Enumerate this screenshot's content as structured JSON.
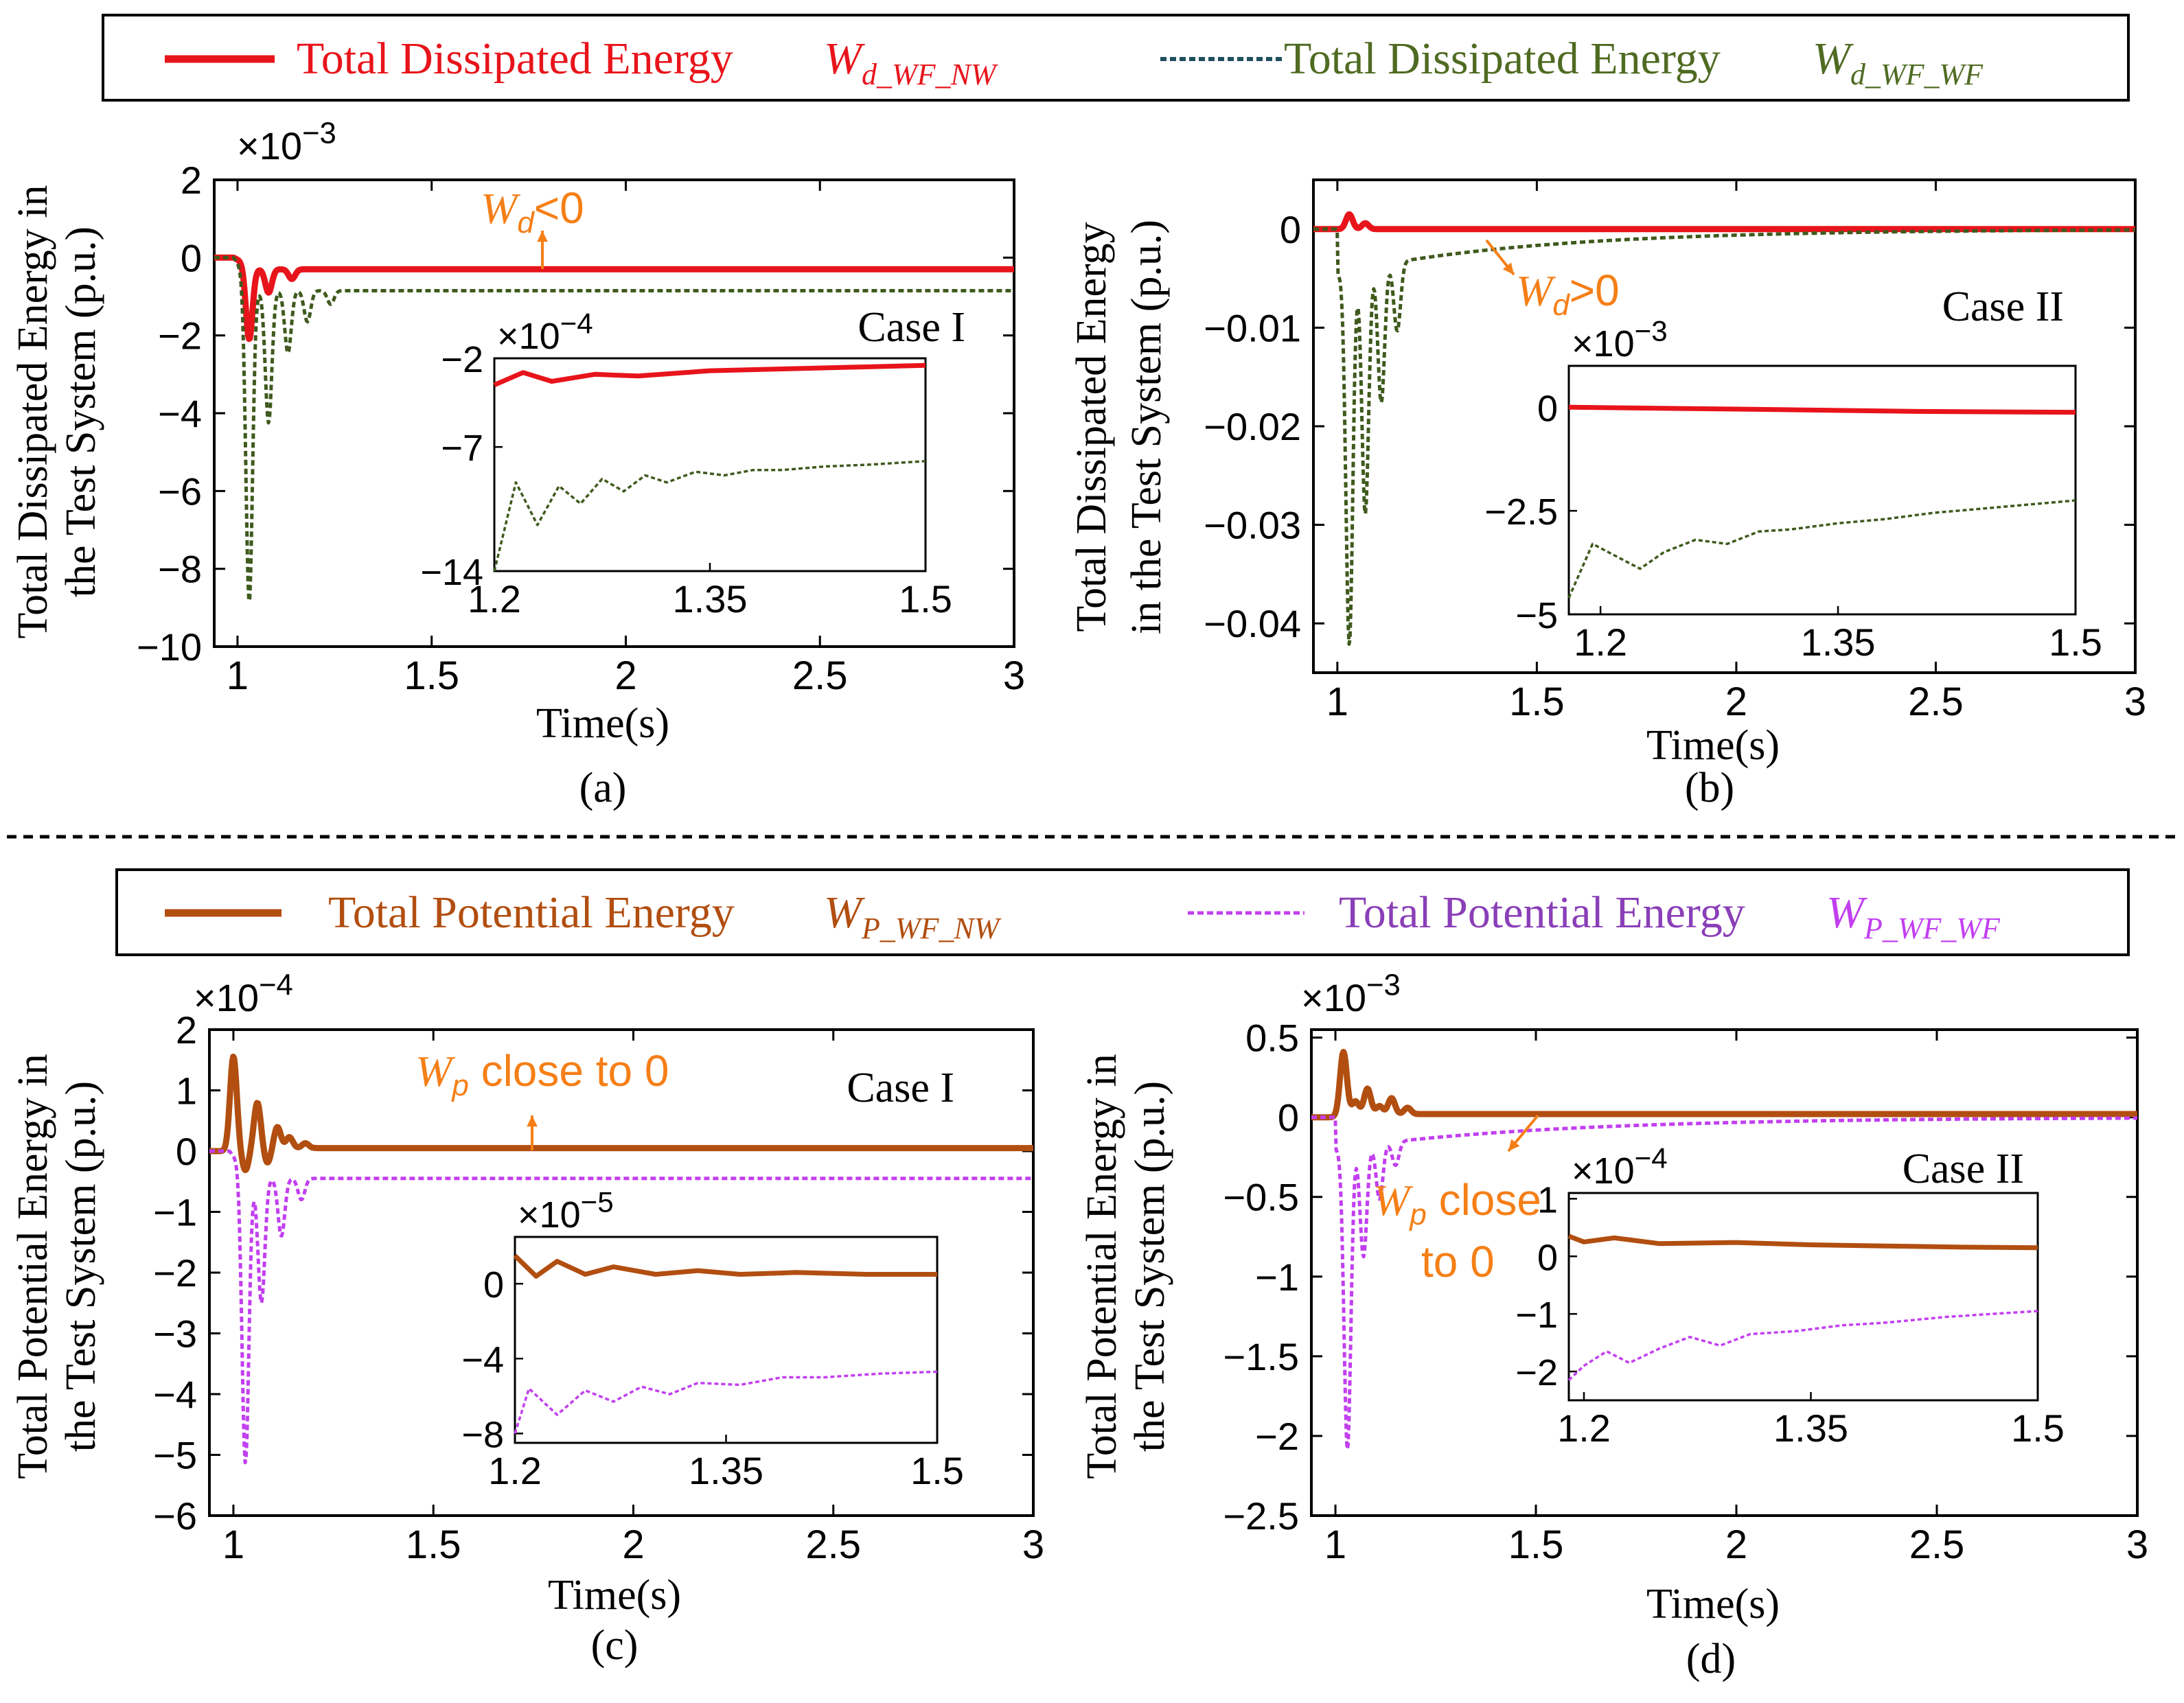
{
  "colors": {
    "wd_nw": "#e8141b",
    "wd_wf": "#3f5a1d",
    "wd_wf_label": "#4f6b22",
    "wd_wf_dash": "#1f4f5c",
    "wp_nw": "#b14e10",
    "wp_wf": "#c23ff0",
    "wp_wf_label": "#8a3fb8",
    "annot": "#f57f17",
    "axis": "#000000"
  },
  "legend_top": {
    "items": [
      {
        "label": "Total Dissipated Energy",
        "symbol_main": "W",
        "symbol_sub": "d_WF_NW",
        "line": "solid",
        "color_key": "wd_nw"
      },
      {
        "label": "Total Dissipated Energy",
        "symbol_main": "W",
        "symbol_sub": "d_WF_WF",
        "line": "dotted",
        "color_key": "wd_wf"
      }
    ]
  },
  "legend_bottom": {
    "items": [
      {
        "label": "Total Potential Energy",
        "symbol_main": "W",
        "symbol_sub": "P_WF_NW",
        "line": "solid",
        "color_key": "wp_nw"
      },
      {
        "label": "Total Potential Energy",
        "symbol_main": "W",
        "symbol_sub": "P_WF_WF",
        "line": "dotted",
        "color_key": "wp_wf"
      }
    ]
  },
  "chart_data": [
    {
      "id": "a",
      "type": "line",
      "caption": "(a)",
      "case_label": "Case I",
      "ylabel": [
        "Total Dissipated Energy in",
        "the Test System (p.u.)"
      ],
      "xlabel": "Time(s)",
      "xlim": [
        0.94,
        3
      ],
      "ylim": [
        -10,
        2
      ],
      "xticks": [
        1,
        1.5,
        2,
        2.5,
        3
      ],
      "xtick_labels": [
        "1",
        "1.5",
        "2",
        "2.5",
        "3"
      ],
      "yticks": [
        2,
        0,
        -2,
        -4,
        -6,
        -8,
        -10
      ],
      "ytick_labels": [
        "2",
        "0",
        "−2",
        "−4",
        "−6",
        "−8",
        "−10"
      ],
      "exponent": "×10−3",
      "annotation": {
        "main": "W",
        "sub": "d",
        "rest": "<0"
      },
      "series": [
        {
          "name": "W_d_WF_NW",
          "color_key": "wd_nw",
          "style": "solid",
          "base": -0.3,
          "dips": [
            [
              1.03,
              -1.9
            ],
            [
              1.08,
              -0.6
            ],
            [
              1.14,
              -0.25
            ]
          ]
        },
        {
          "name": "W_d_WF_WF",
          "color_key": "wd_wf",
          "style": "dotted",
          "base": -0.85,
          "dips": [
            [
              1.03,
              -8.3
            ],
            [
              1.08,
              -3.4
            ],
            [
              1.13,
              -1.6
            ],
            [
              1.18,
              -0.8
            ],
            [
              1.24,
              -0.35
            ]
          ]
        }
      ],
      "inset": {
        "exponent": "×10−4",
        "xlim": [
          1.2,
          1.5
        ],
        "ylim": [
          -14,
          -2
        ],
        "xticks": [
          1.2,
          1.35,
          1.5
        ],
        "xtick_labels": [
          "1.2",
          "1.35",
          "1.5"
        ],
        "yticks": [
          -2,
          -7,
          -14
        ],
        "ytick_labels": [
          "−2",
          "−7",
          "−14"
        ],
        "series": [
          {
            "color_key": "wd_nw",
            "style": "solid",
            "x": [
              1.2,
              1.22,
              1.24,
              1.27,
              1.3,
              1.35,
              1.4,
              1.45,
              1.5
            ],
            "y": [
              -3.5,
              -2.8,
              -3.3,
              -2.9,
              -3.0,
              -2.7,
              -2.6,
              -2.5,
              -2.4
            ]
          },
          {
            "color_key": "wd_wf",
            "style": "dotted",
            "x": [
              1.2,
              1.215,
              1.23,
              1.245,
              1.26,
              1.275,
              1.29,
              1.305,
              1.32,
              1.34,
              1.36,
              1.38,
              1.4,
              1.43,
              1.46,
              1.5
            ],
            "y": [
              -14,
              -9,
              -11.4,
              -9.2,
              -10.2,
              -8.8,
              -9.5,
              -8.6,
              -9.0,
              -8.4,
              -8.6,
              -8.3,
              -8.3,
              -8.1,
              -8.0,
              -7.8
            ]
          }
        ]
      }
    },
    {
      "id": "b",
      "type": "line",
      "caption": "(b)",
      "case_label": "Case II",
      "ylabel": [
        "Total Dissipated Energy",
        "in the Test System (p.u.)"
      ],
      "xlabel": "Time(s)",
      "xlim": [
        0.94,
        3
      ],
      "ylim": [
        -0.045,
        0.005
      ],
      "xticks": [
        1,
        1.5,
        2,
        2.5,
        3
      ],
      "xtick_labels": [
        "1",
        "1.5",
        "2",
        "2.5",
        "3"
      ],
      "yticks": [
        0,
        -0.01,
        -0.02,
        -0.03,
        -0.04
      ],
      "ytick_labels": [
        "0",
        "−0.01",
        "−0.02",
        "−0.03",
        "−0.04"
      ],
      "exponent": "",
      "annotation": {
        "main": "W",
        "sub": "d",
        "rest": ">0"
      },
      "series": [
        {
          "name": "W_d_WF_NW",
          "color_key": "wd_nw",
          "style": "solid",
          "base": 0,
          "dips": [
            [
              1.03,
              0.0015
            ],
            [
              1.07,
              0.0006
            ]
          ]
        },
        {
          "name": "W_d_WF_WF",
          "color_key": "wd_wf",
          "style": "dotted",
          "base_func": "decay",
          "base0": -0.0045,
          "tau": 0.5,
          "dips": [
            [
              1.03,
              -0.038
            ],
            [
              1.07,
              -0.025
            ],
            [
              1.11,
              -0.014
            ],
            [
              1.15,
              -0.007
            ]
          ]
        }
      ],
      "inset": {
        "exponent": "×10−3",
        "xlim": [
          1.18,
          1.5
        ],
        "ylim": [
          -5,
          1
        ],
        "xticks": [
          1.2,
          1.35,
          1.5
        ],
        "xtick_labels": [
          "1.2",
          "1.35",
          "1.5"
        ],
        "yticks": [
          0,
          -2.5,
          -5
        ],
        "ytick_labels": [
          "0",
          "−2.5",
          "−5"
        ],
        "series": [
          {
            "color_key": "wd_nw",
            "style": "solid",
            "x": [
              1.18,
              1.3,
              1.4,
              1.5
            ],
            "y": [
              0.0,
              -0.05,
              -0.1,
              -0.12
            ]
          },
          {
            "color_key": "wd_wf",
            "style": "dotted",
            "x": [
              1.18,
              1.195,
              1.21,
              1.225,
              1.24,
              1.26,
              1.28,
              1.3,
              1.32,
              1.35,
              1.38,
              1.41,
              1.44,
              1.47,
              1.5
            ],
            "y": [
              -4.6,
              -3.3,
              -3.6,
              -3.9,
              -3.5,
              -3.2,
              -3.3,
              -3.0,
              -2.95,
              -2.8,
              -2.7,
              -2.55,
              -2.45,
              -2.35,
              -2.25
            ]
          }
        ]
      }
    },
    {
      "id": "c",
      "type": "line",
      "caption": "(c)",
      "case_label": "Case I",
      "ylabel": [
        "Total Potential Energy in",
        "the Test System (p.u.)"
      ],
      "xlabel": "Time(s)",
      "xlim": [
        0.94,
        3
      ],
      "ylim": [
        -6,
        2
      ],
      "xticks": [
        1,
        1.5,
        2,
        2.5,
        3
      ],
      "xtick_labels": [
        "1",
        "1.5",
        "2",
        "2.5",
        "3"
      ],
      "yticks": [
        2,
        1,
        0,
        -1,
        -2,
        -3,
        -4,
        -5,
        -6
      ],
      "ytick_labels": [
        "2",
        "1",
        "0",
        "−1",
        "−2",
        "−3",
        "−4",
        "−5",
        "−6"
      ],
      "exponent": "×10−4",
      "annotation": {
        "main": "W",
        "sub": "p",
        "rest": " close to 0"
      },
      "series": [
        {
          "name": "W_P_WF_NW",
          "color_key": "wp_nw",
          "style": "solid",
          "base": 0.05,
          "dips": [
            [
              1.0,
              1.55
            ],
            [
              1.03,
              -0.35
            ],
            [
              1.06,
              0.75
            ],
            [
              1.085,
              -0.25
            ],
            [
              1.11,
              0.35
            ],
            [
              1.14,
              0.18
            ],
            [
              1.18,
              0.08
            ]
          ]
        },
        {
          "name": "W_P_WF_WF",
          "color_key": "wp_wf",
          "style": "dotted",
          "base": -0.45,
          "dips": [
            [
              1.03,
              -4.85
            ],
            [
              1.07,
              -2.05
            ],
            [
              1.12,
              -0.95
            ],
            [
              1.17,
              -0.35
            ]
          ]
        }
      ],
      "inset": {
        "exponent": "×10−5",
        "xlim": [
          1.2,
          1.5
        ],
        "ylim": [
          -8.5,
          2.5
        ],
        "xticks": [
          1.2,
          1.35,
          1.5
        ],
        "xtick_labels": [
          "1.2",
          "1.35",
          "1.5"
        ],
        "yticks": [
          0,
          -4,
          -8
        ],
        "ytick_labels": [
          "0",
          "−4",
          "−8"
        ],
        "series": [
          {
            "color_key": "wp_nw",
            "style": "solid",
            "x": [
              1.2,
              1.215,
              1.23,
              1.25,
              1.27,
              1.3,
              1.33,
              1.36,
              1.4,
              1.45,
              1.5
            ],
            "y": [
              1.5,
              0.4,
              1.2,
              0.5,
              0.9,
              0.5,
              0.7,
              0.5,
              0.6,
              0.5,
              0.5
            ]
          },
          {
            "color_key": "wp_wf",
            "style": "dotted",
            "x": [
              1.2,
              1.21,
              1.23,
              1.25,
              1.27,
              1.29,
              1.31,
              1.33,
              1.36,
              1.39,
              1.42,
              1.46,
              1.5
            ],
            "y": [
              -8,
              -5.6,
              -7.0,
              -5.7,
              -6.3,
              -5.5,
              -5.9,
              -5.3,
              -5.4,
              -5.0,
              -5.0,
              -4.8,
              -4.7
            ]
          }
        ]
      }
    },
    {
      "id": "d",
      "type": "line",
      "caption": "(d)",
      "case_label": "Case II",
      "ylabel": [
        "Total Potential Energy in",
        "the Test System (p.u.)"
      ],
      "xlabel": "Time(s)",
      "xlim": [
        0.94,
        3
      ],
      "ylim": [
        -2.5,
        0.55
      ],
      "xticks": [
        1,
        1.5,
        2,
        2.5,
        3
      ],
      "xtick_labels": [
        "1",
        "1.5",
        "2",
        "2.5",
        "3"
      ],
      "yticks": [
        0.5,
        0,
        -0.5,
        -1,
        -1.5,
        -2,
        -2.5
      ],
      "ytick_labels": [
        "0.5",
        "0",
        "−0.5",
        "−1",
        "−1.5",
        "−2",
        "−2.5"
      ],
      "exponent": "×10−3",
      "annotation": {
        "main": "W",
        "sub": "p",
        "rest": " close",
        "line2": "to 0"
      },
      "series": [
        {
          "name": "W_P_WF_NW",
          "color_key": "wp_nw",
          "style": "solid",
          "base": 0.02,
          "dips": [
            [
              1.02,
              0.4
            ],
            [
              1.05,
              0.08
            ],
            [
              1.08,
              0.16
            ],
            [
              1.11,
              0.05
            ],
            [
              1.14,
              0.1
            ],
            [
              1.18,
              0.04
            ]
          ]
        },
        {
          "name": "W_P_WF_WF",
          "color_key": "wp_wf",
          "style": "dotted",
          "base_func": "decay",
          "base0": -0.2,
          "tau": 0.55,
          "dips": [
            [
              1.03,
              -1.9
            ],
            [
              1.07,
              -0.7
            ],
            [
              1.11,
              -0.35
            ],
            [
              1.15,
              -0.15
            ]
          ]
        }
      ],
      "inset": {
        "exponent": "×10−4",
        "xlim": [
          1.19,
          1.5
        ],
        "ylim": [
          -2.5,
          1.1
        ],
        "xticks": [
          1.2,
          1.35,
          1.5
        ],
        "xtick_labels": [
          "1.2",
          "1.35",
          "1.5"
        ],
        "yticks": [
          1,
          0,
          -1,
          -2
        ],
        "ytick_labels": [
          "1",
          "0",
          "−1",
          "−2"
        ],
        "series": [
          {
            "color_key": "wp_nw",
            "style": "solid",
            "x": [
              1.19,
              1.2,
              1.22,
              1.25,
              1.3,
              1.35,
              1.4,
              1.45,
              1.5
            ],
            "y": [
              0.35,
              0.25,
              0.32,
              0.22,
              0.24,
              0.2,
              0.18,
              0.16,
              0.15
            ]
          },
          {
            "color_key": "wp_wf",
            "style": "dotted",
            "x": [
              1.19,
              1.2,
              1.215,
              1.23,
              1.25,
              1.27,
              1.29,
              1.31,
              1.34,
              1.37,
              1.4,
              1.44,
              1.47,
              1.5
            ],
            "y": [
              -2.15,
              -1.9,
              -1.65,
              -1.85,
              -1.6,
              -1.4,
              -1.55,
              -1.35,
              -1.3,
              -1.2,
              -1.15,
              -1.05,
              -1.0,
              -0.95
            ]
          }
        ]
      }
    }
  ]
}
